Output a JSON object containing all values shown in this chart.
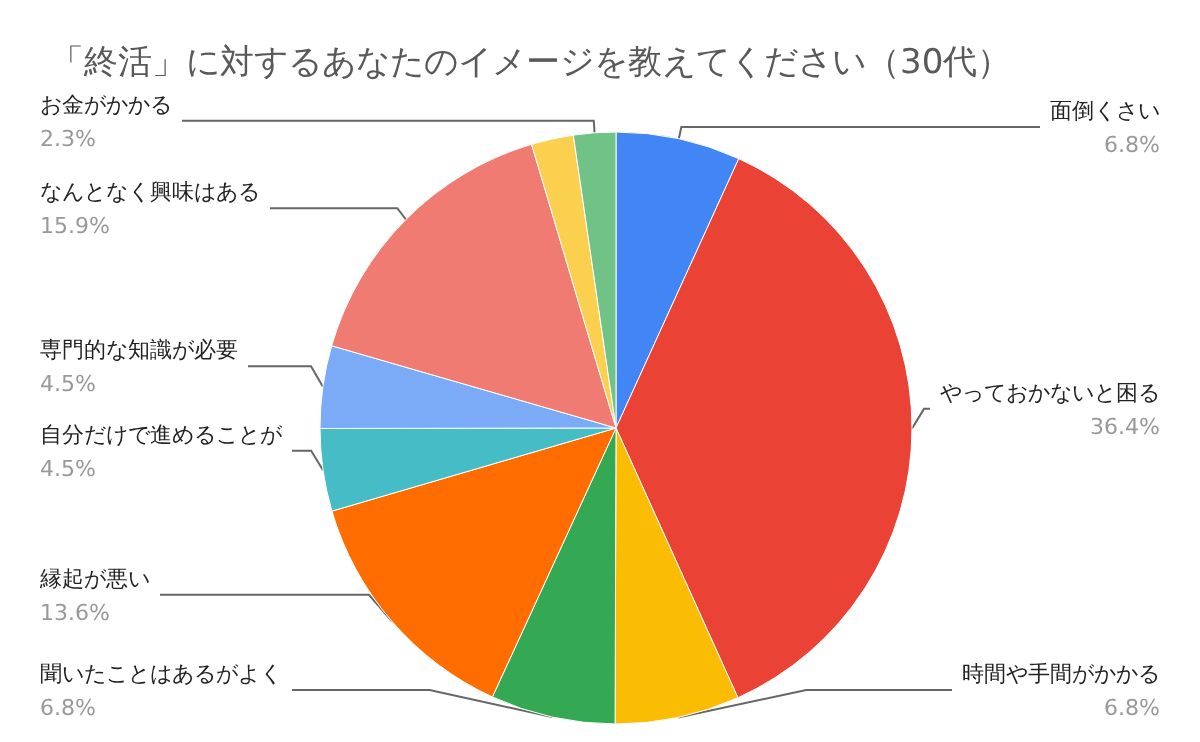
{
  "chart_data": {
    "type": "pie",
    "title": "「終活」に対するあなたのイメージを教えてください（30代）",
    "categories": [
      "面倒くさい",
      "やっておかないと困る",
      "時間や手間がかかる",
      "聞いたことはあるがよく",
      "縁起が悪い",
      "自分だけで進めることが",
      "専門的な知識が必要",
      "なんとなく興味はある",
      null,
      "お金がかかる"
    ],
    "values": [
      6.8,
      36.4,
      6.8,
      6.8,
      13.6,
      4.5,
      4.5,
      15.9,
      2.3,
      2.3
    ],
    "value_labels": [
      "6.8%",
      "36.4%",
      "6.8%",
      "6.8%",
      "13.6%",
      "4.5%",
      "4.5%",
      "15.9%",
      null,
      "2.3%"
    ],
    "colors": [
      "#4285f4",
      "#ea4335",
      "#fbbc04",
      "#34a853",
      "#ff6d01",
      "#46bdc6",
      "#7baaf7",
      "#f07b72",
      "#fcd04f",
      "#71c287"
    ],
    "legend": false
  }
}
